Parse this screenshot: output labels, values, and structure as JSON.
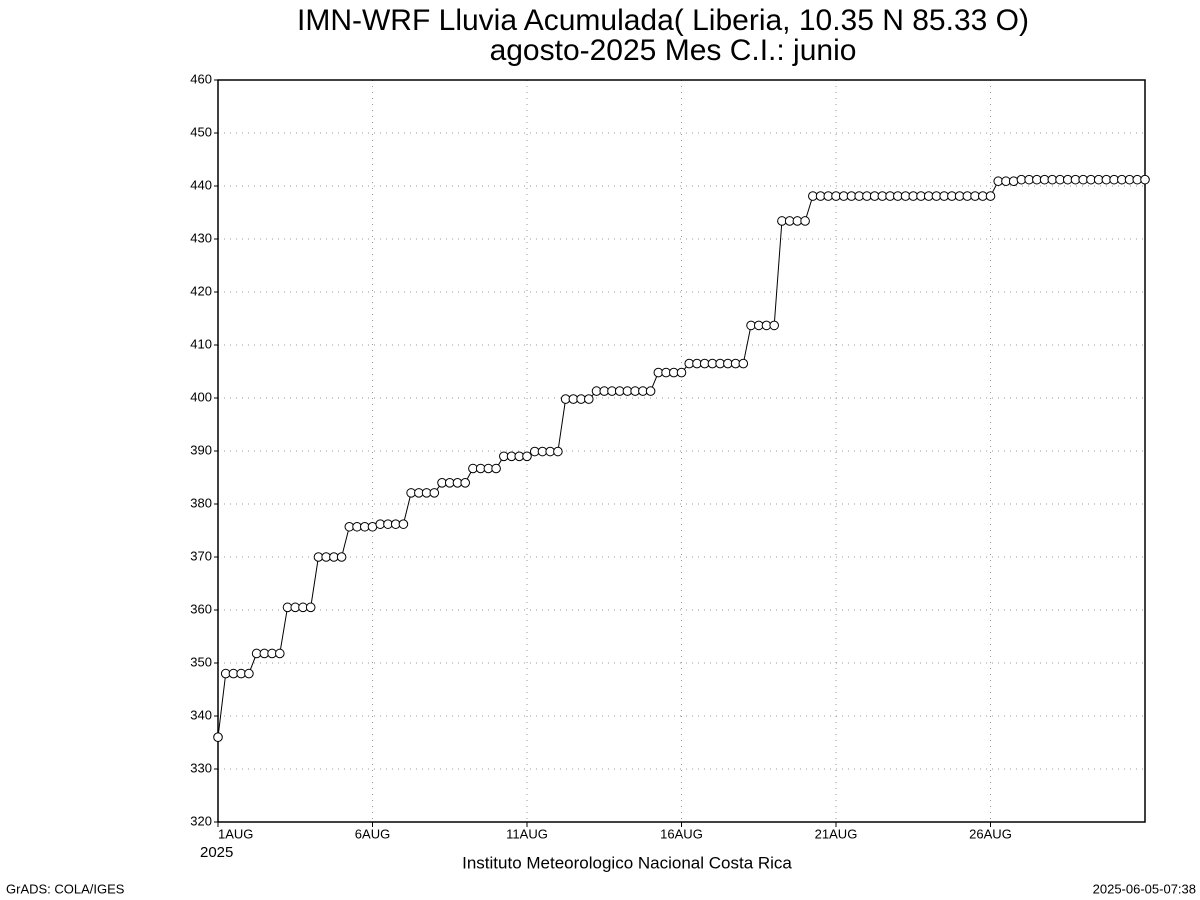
{
  "chart_data": {
    "type": "line",
    "title": "IMN-WRF  Lluvia Acumulada( Liberia, 10.35  N 85.33  O)",
    "subtitle": "agosto-2025 Mes C.I.: junio",
    "x_label": "Instituto Meteorologico Nacional Costa Rica",
    "year_label": "2025",
    "footer_left": "GrADS: COLA/IGES",
    "footer_right": "2025-06-05-07:38",
    "xlim": [
      1,
      31
    ],
    "xticks": [
      {
        "value": 1,
        "label": "1AUG"
      },
      {
        "value": 6,
        "label": "6AUG"
      },
      {
        "value": 11,
        "label": "11AUG"
      },
      {
        "value": 16,
        "label": "16AUG"
      },
      {
        "value": 21,
        "label": "21AUG"
      },
      {
        "value": 26,
        "label": "26AUG"
      }
    ],
    "ylim": [
      320,
      460
    ],
    "yticks": [
      320,
      330,
      340,
      350,
      360,
      370,
      380,
      390,
      400,
      410,
      420,
      430,
      440,
      450,
      460
    ],
    "grid": true,
    "x": [
      1,
      1.25,
      1.5,
      1.75,
      2,
      2.25,
      2.5,
      2.75,
      3,
      3.25,
      3.5,
      3.75,
      4,
      4.25,
      4.5,
      4.75,
      5,
      5.25,
      5.5,
      5.75,
      6,
      6.25,
      6.5,
      6.75,
      7,
      7.25,
      7.5,
      7.75,
      8,
      8.25,
      8.5,
      8.75,
      9,
      9.25,
      9.5,
      9.75,
      10,
      10.25,
      10.5,
      10.75,
      11,
      11.25,
      11.5,
      11.75,
      12,
      12.25,
      12.5,
      12.75,
      13,
      13.25,
      13.5,
      13.75,
      14,
      14.25,
      14.5,
      14.75,
      15,
      15.25,
      15.5,
      15.75,
      16,
      16.25,
      16.5,
      16.75,
      17,
      17.25,
      17.5,
      17.75,
      18,
      18.25,
      18.5,
      18.75,
      19,
      19.25,
      19.5,
      19.75,
      20,
      20.25,
      20.5,
      20.75,
      21,
      21.25,
      21.5,
      21.75,
      22,
      22.25,
      22.5,
      22.75,
      23,
      23.25,
      23.5,
      23.75,
      24,
      24.25,
      24.5,
      24.75,
      25,
      25.25,
      25.5,
      25.75,
      26,
      26.25,
      26.5,
      26.75,
      27,
      27.25,
      27.5,
      27.75,
      28,
      28.25,
      28.5,
      28.75,
      29,
      29.25,
      29.5,
      29.75,
      30,
      30.25,
      30.5,
      30.75,
      31
    ],
    "series": [
      {
        "name": "Lluvia Acumulada",
        "color": "#000000",
        "values": [
          336,
          348,
          348,
          348,
          348,
          351.8,
          351.8,
          351.8,
          351.8,
          360.5,
          360.5,
          360.5,
          360.5,
          370,
          370,
          370,
          370,
          375.7,
          375.7,
          375.7,
          375.7,
          376.2,
          376.2,
          376.2,
          376.2,
          382.1,
          382.1,
          382.1,
          382.1,
          384,
          384,
          384,
          384,
          386.7,
          386.7,
          386.7,
          386.7,
          389,
          389,
          389,
          389,
          389.9,
          389.9,
          389.9,
          389.9,
          399.8,
          399.8,
          399.8,
          399.8,
          401.3,
          401.3,
          401.3,
          401.3,
          401.3,
          401.3,
          401.3,
          401.3,
          404.8,
          404.8,
          404.8,
          404.8,
          406.5,
          406.5,
          406.5,
          406.5,
          406.5,
          406.5,
          406.5,
          406.5,
          413.7,
          413.7,
          413.7,
          413.7,
          433.4,
          433.4,
          433.4,
          433.4,
          438.1,
          438.1,
          438.1,
          438.1,
          438.1,
          438.1,
          438.1,
          438.1,
          438.1,
          438.1,
          438.1,
          438.1,
          438.1,
          438.1,
          438.1,
          438.1,
          438.1,
          438.1,
          438.1,
          438.1,
          438.1,
          438.1,
          438.1,
          438.1,
          440.9,
          440.9,
          440.9,
          441.2,
          441.2,
          441.2,
          441.2,
          441.2,
          441.2,
          441.2,
          441.2,
          441.2,
          441.2,
          441.2,
          441.2,
          441.2,
          441.2,
          441.2,
          441.2,
          441.2
        ]
      }
    ]
  }
}
